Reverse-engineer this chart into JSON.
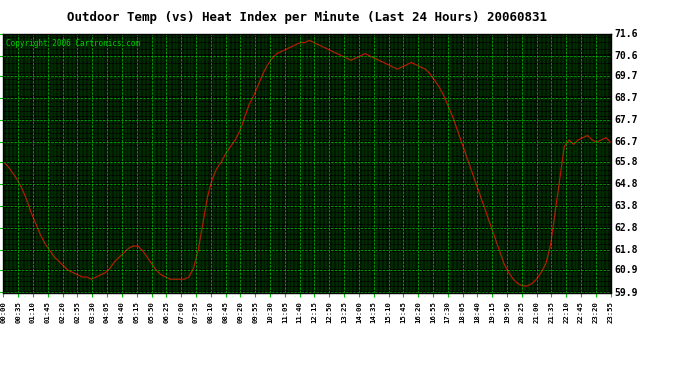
{
  "title": "Outdoor Temp (vs) Heat Index per Minute (Last 24 Hours) 20060831",
  "copyright": "Copyright 2006 Cartronics.com",
  "bg_color": "#000000",
  "outer_bg": "#ffffff",
  "line_color": "#cc0000",
  "grid_major_color": "#00cc00",
  "grid_minor_color": "#005500",
  "ymin": 59.9,
  "ymax": 71.6,
  "yticks": [
    59.9,
    60.9,
    61.8,
    62.8,
    63.8,
    64.8,
    65.8,
    66.7,
    67.7,
    68.7,
    69.7,
    70.6,
    71.6
  ],
  "xtick_labels": [
    "00:00",
    "00:35",
    "01:10",
    "01:45",
    "02:20",
    "02:55",
    "03:30",
    "04:05",
    "04:40",
    "05:15",
    "05:50",
    "06:25",
    "07:00",
    "07:35",
    "08:10",
    "08:45",
    "09:20",
    "09:55",
    "10:30",
    "11:05",
    "11:40",
    "12:15",
    "12:50",
    "13:25",
    "14:00",
    "14:35",
    "15:10",
    "15:45",
    "16:20",
    "16:55",
    "17:30",
    "18:05",
    "18:40",
    "19:15",
    "19:50",
    "20:25",
    "21:00",
    "21:35",
    "22:10",
    "22:45",
    "23:20",
    "23:55"
  ],
  "data_y": [
    65.8,
    65.6,
    65.3,
    65.0,
    64.6,
    64.1,
    63.5,
    63.0,
    62.5,
    62.1,
    61.8,
    61.5,
    61.3,
    61.1,
    60.9,
    60.8,
    60.7,
    60.6,
    60.6,
    60.5,
    60.6,
    60.7,
    60.8,
    61.0,
    61.3,
    61.5,
    61.7,
    61.9,
    62.0,
    62.0,
    61.8,
    61.5,
    61.2,
    60.9,
    60.7,
    60.6,
    60.5,
    60.5,
    60.5,
    60.5,
    60.6,
    61.0,
    61.8,
    63.0,
    64.2,
    65.0,
    65.5,
    65.8,
    66.2,
    66.5,
    66.8,
    67.2,
    67.8,
    68.4,
    68.8,
    69.3,
    69.8,
    70.2,
    70.5,
    70.7,
    70.8,
    70.9,
    71.0,
    71.1,
    71.2,
    71.2,
    71.3,
    71.2,
    71.1,
    71.0,
    70.9,
    70.8,
    70.7,
    70.6,
    70.5,
    70.4,
    70.5,
    70.6,
    70.7,
    70.6,
    70.5,
    70.4,
    70.3,
    70.2,
    70.1,
    70.0,
    70.1,
    70.2,
    70.3,
    70.2,
    70.1,
    70.0,
    69.8,
    69.5,
    69.2,
    68.8,
    68.3,
    67.8,
    67.2,
    66.6,
    66.0,
    65.4,
    64.8,
    64.2,
    63.6,
    63.0,
    62.4,
    61.8,
    61.2,
    60.8,
    60.5,
    60.3,
    60.2,
    60.2,
    60.3,
    60.5,
    60.8,
    61.2,
    62.0,
    63.5,
    65.0,
    66.5,
    66.8,
    66.6,
    66.8,
    66.9,
    67.0,
    66.8,
    66.7,
    66.8,
    66.9,
    66.7
  ]
}
